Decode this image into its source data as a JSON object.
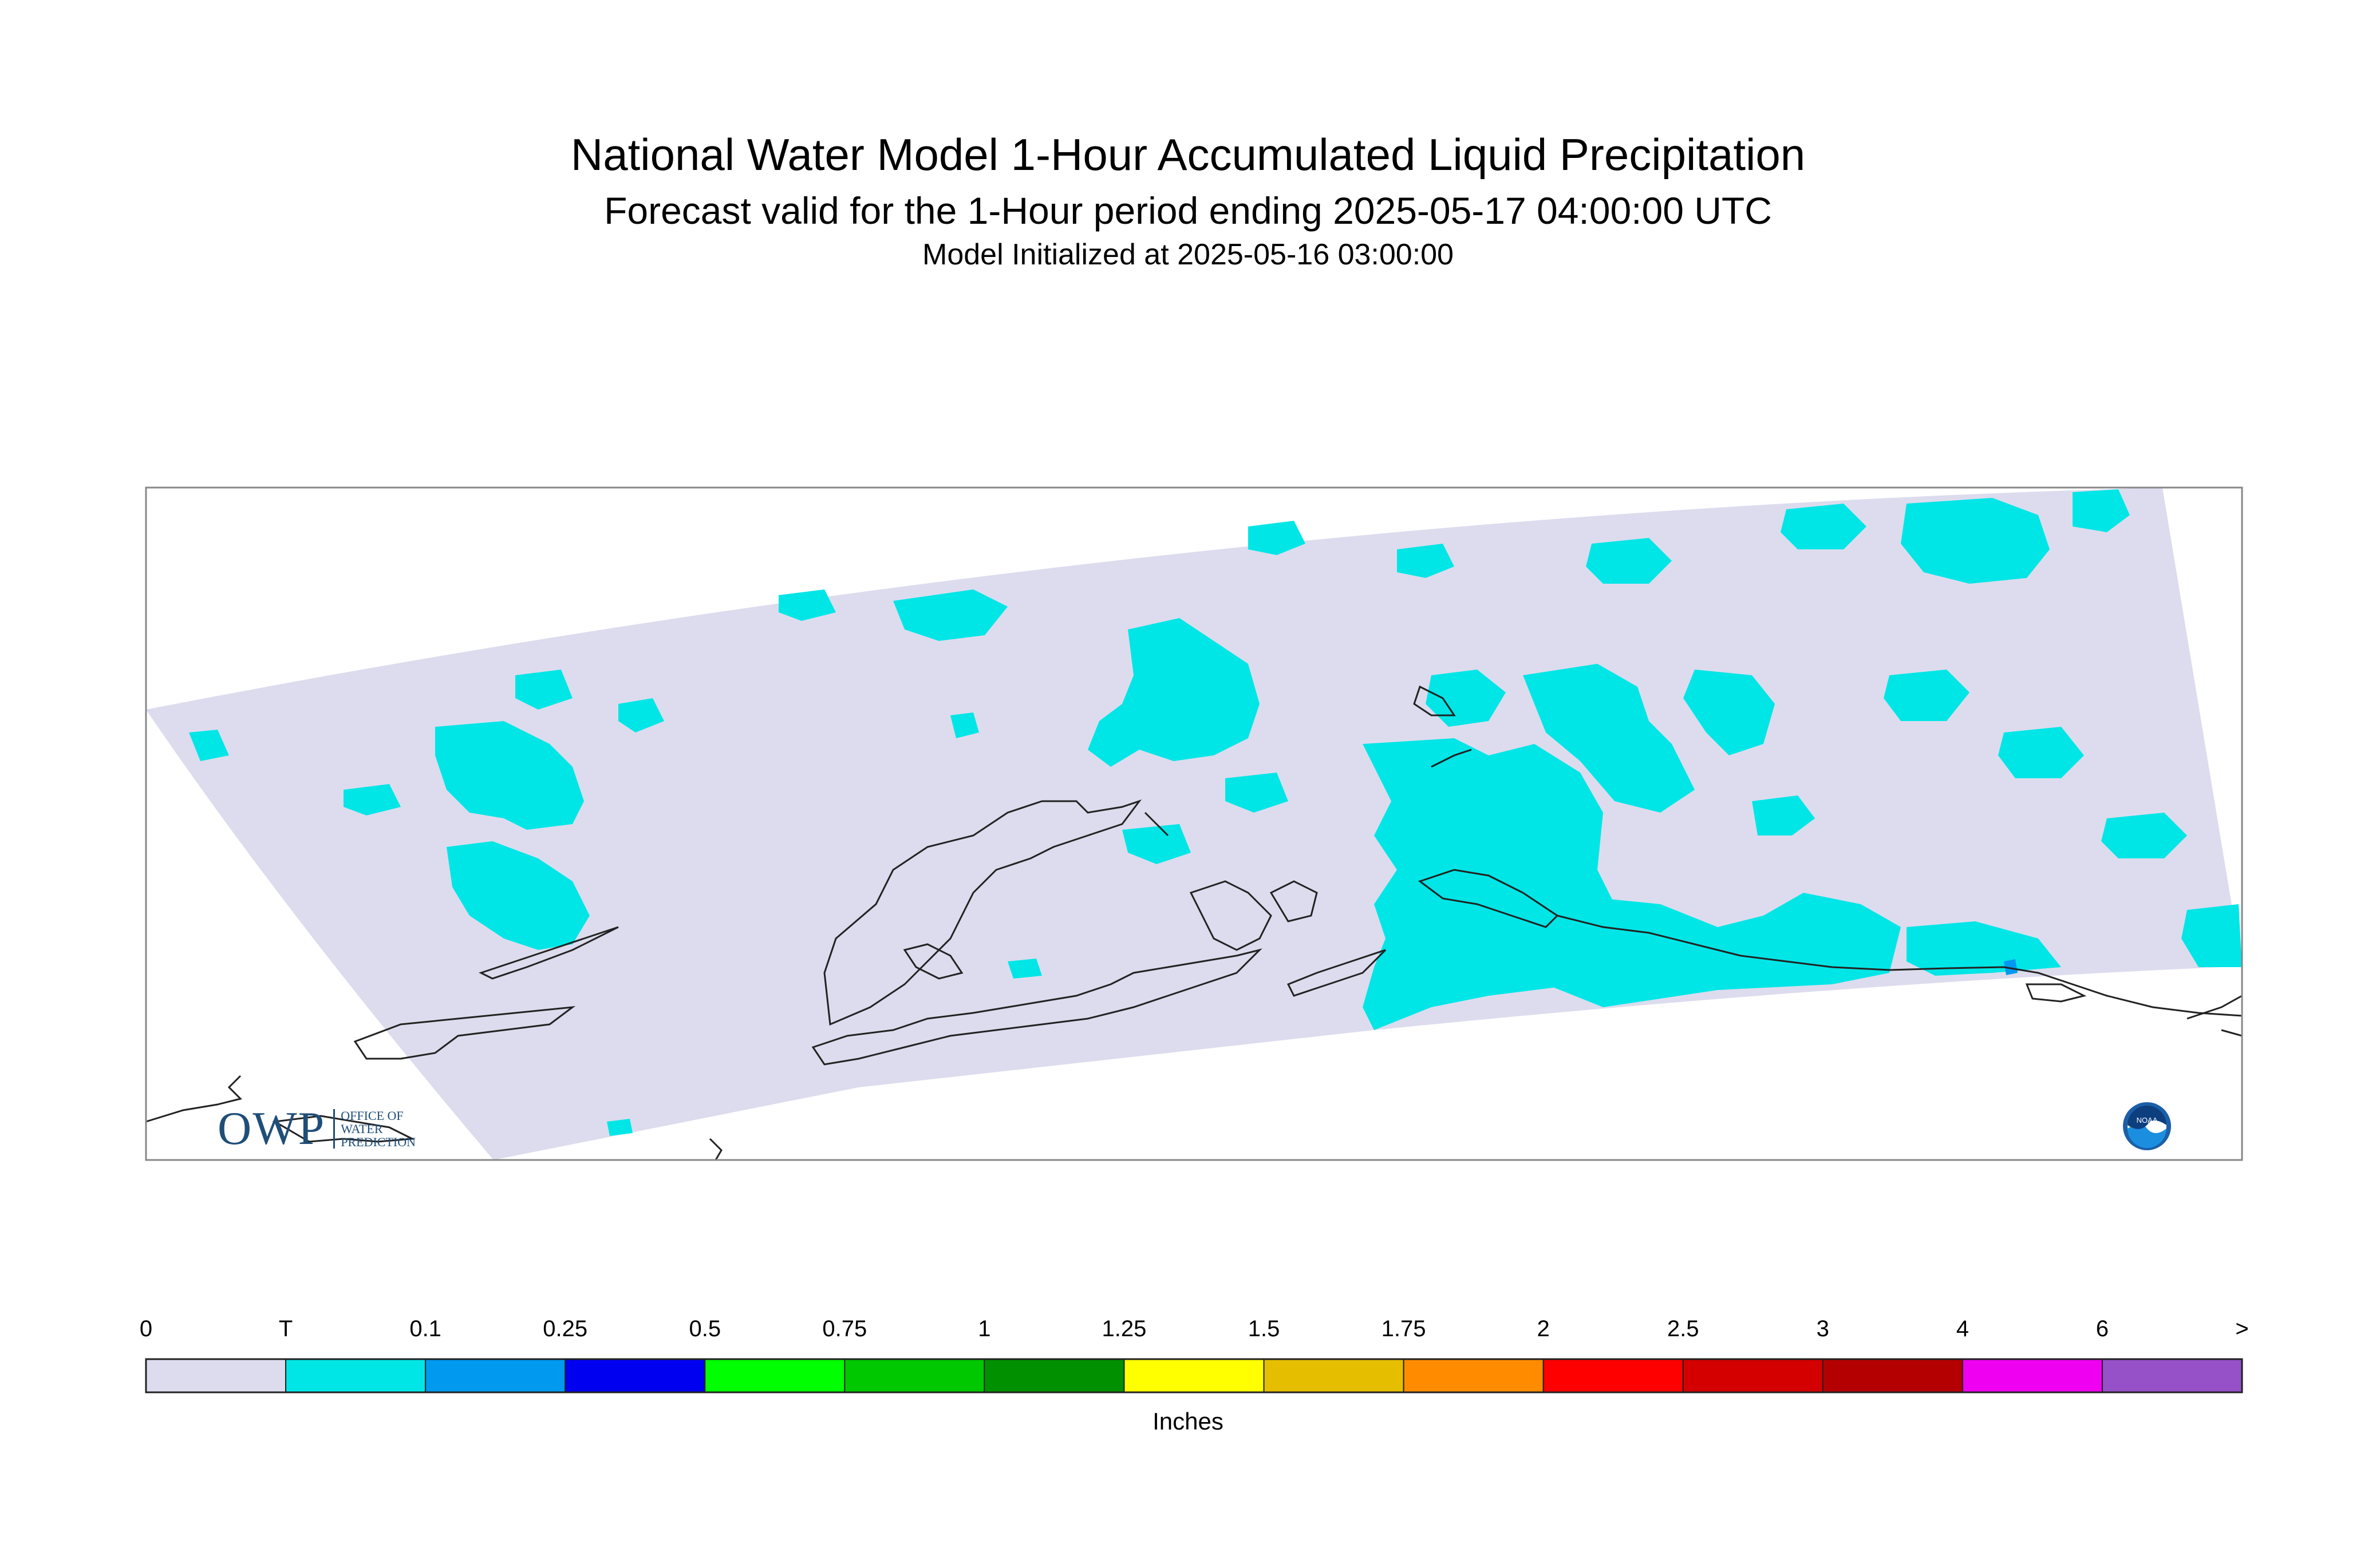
{
  "title": "National Water Model 1-Hour Accumulated Liquid Precipitation",
  "subtitle": "Forecast valid for the 1-Hour period ending 2025-05-17 04:00:00 UTC",
  "init_text": "Model Initialized at 2025-05-16 03:00:00",
  "colorbar": {
    "units": "Inches",
    "labels": [
      "0",
      "T",
      "0.1",
      "0.25",
      "0.5",
      "0.75",
      "1",
      "1.25",
      "1.5",
      "1.75",
      "2",
      "2.5",
      "3",
      "4",
      "6",
      ">"
    ],
    "colors": [
      "#dcdcee",
      "#00e6e6",
      "#0099f0",
      "#0000f0",
      "#00ff00",
      "#00c800",
      "#009000",
      "#ffff00",
      "#e6be00",
      "#ff8c00",
      "#ff0000",
      "#d40000",
      "#b40000",
      "#f000f0",
      "#9650c8"
    ]
  },
  "logos": {
    "owp_mark": "OWP",
    "owp_lines": [
      "OFFICE OF",
      "WATER",
      "PREDICTION"
    ],
    "noaa": "NOAA"
  },
  "icons": {
    "noaa": "noaa-logo-icon"
  },
  "colors": {
    "domain_fill": "#dcdcee",
    "trace_precip": "#00e6e6",
    "light_precip": "#0099f0",
    "coastline": "#222222"
  }
}
